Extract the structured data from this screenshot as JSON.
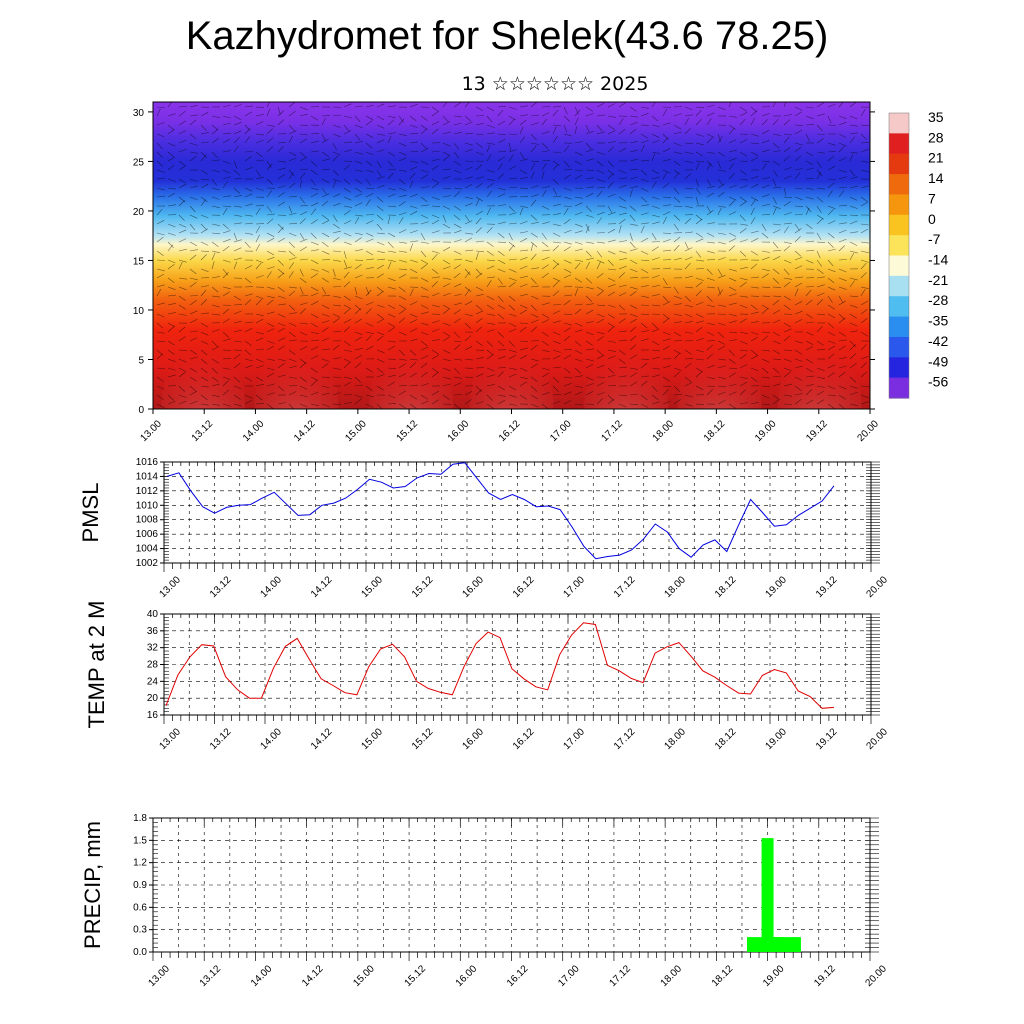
{
  "title": "Kazhydromet for Shelek(43.6 78.25)",
  "subtitle": "13 ☆☆☆☆☆☆ 2025",
  "chart_data": [
    {
      "type": "heatmap",
      "name": "cross-section",
      "x_ticks": [
        "13.00",
        "13.12",
        "14.00",
        "14.12",
        "15.00",
        "15.12",
        "16.00",
        "16.12",
        "17.00",
        "17.12",
        "18.00",
        "18.12",
        "19.00",
        "19.12",
        "20.00"
      ],
      "y_ticks": [
        0,
        5,
        10,
        15,
        20,
        25,
        30
      ],
      "ylim": [
        0,
        31
      ],
      "colorbar": {
        "labels": [
          "35",
          "28",
          "21",
          "14",
          "7",
          "0",
          "-7",
          "-14",
          "-21",
          "-28",
          "-35",
          "-42",
          "-49",
          "-56"
        ],
        "colors": [
          "#f6c9c9",
          "#e02020",
          "#e53a10",
          "#ee6a0c",
          "#f5960e",
          "#f9c320",
          "#fbe35a",
          "#fdfad8",
          "#a8e0f2",
          "#4fbdf0",
          "#2a8ef0",
          "#2a58ec",
          "#2525e0",
          "#7a2ee0"
        ]
      },
      "bands": [
        {
          "z": 0,
          "color": "#b11818"
        },
        {
          "z": 4,
          "color": "#dd1a16"
        },
        {
          "z": 8,
          "color": "#f0240e"
        },
        {
          "z": 11,
          "color": "#f26010"
        },
        {
          "z": 13,
          "color": "#f7a21a"
        },
        {
          "z": 15,
          "color": "#fbd84a"
        },
        {
          "z": 16.6,
          "color": "#fdf6c8"
        },
        {
          "z": 17.5,
          "color": "#b4e2f4"
        },
        {
          "z": 19.5,
          "color": "#4fb8f0"
        },
        {
          "z": 21.5,
          "color": "#2a6ee8"
        },
        {
          "z": 23,
          "color": "#2330d8"
        },
        {
          "z": 25,
          "color": "#2a2ad6"
        },
        {
          "z": 27,
          "color": "#4a2ee0"
        },
        {
          "z": 29,
          "color": "#7a30e6"
        },
        {
          "z": 31,
          "color": "#8a34ea"
        }
      ],
      "warm_spots": [
        0.07,
        0.2,
        0.36,
        0.5,
        0.66,
        0.79,
        0.93
      ]
    },
    {
      "type": "line",
      "name": "pmsl",
      "ylabel": "PMSL",
      "color": "#0000e0",
      "ylim": [
        1002,
        1016
      ],
      "y_ticks": [
        1002,
        1004,
        1006,
        1008,
        1010,
        1012,
        1014,
        1016
      ],
      "x_ticks": [
        "13.00",
        "13.12",
        "14.00",
        "14.12",
        "15.00",
        "15.12",
        "16.00",
        "16.12",
        "17.00",
        "17.12",
        "18.00",
        "18.12",
        "19.00",
        "19.12",
        "20.00"
      ],
      "values": [
        1014.0,
        1014.5,
        1012.0,
        1009.8,
        1008.9,
        1009.7,
        1010.0,
        1010.1,
        1011.0,
        1011.8,
        1010.2,
        1008.6,
        1008.7,
        1010.0,
        1010.3,
        1011.0,
        1012.2,
        1013.6,
        1013.2,
        1012.4,
        1012.6,
        1013.8,
        1014.4,
        1014.3,
        1015.7,
        1015.9,
        1013.8,
        1011.7,
        1010.8,
        1011.5,
        1010.8,
        1009.8,
        1009.9,
        1009.4,
        1007.0,
        1004.3,
        1002.6,
        1002.9,
        1003.1,
        1003.8,
        1005.3,
        1007.4,
        1006.3,
        1004.0,
        1002.8,
        1004.5,
        1005.2,
        1003.6,
        1007.3,
        1010.8,
        1009.0,
        1007.1,
        1007.3,
        1008.6,
        1009.6,
        1010.6,
        1012.7
      ]
    },
    {
      "type": "line",
      "name": "temp",
      "ylabel": "TEMP at 2 M",
      "color": "#e00000",
      "ylim": [
        16,
        40
      ],
      "y_ticks": [
        16,
        20,
        24,
        28,
        32,
        36,
        40
      ],
      "x_ticks": [
        "13.00",
        "13.12",
        "14.00",
        "14.12",
        "15.00",
        "15.12",
        "16.00",
        "16.12",
        "17.00",
        "17.12",
        "18.00",
        "18.12",
        "19.00",
        "19.12",
        "20.00"
      ],
      "values": [
        18.2,
        25.5,
        29.8,
        32.7,
        32.4,
        25.1,
        22.0,
        20.0,
        20.0,
        27.1,
        32.3,
        34.2,
        29.3,
        24.6,
        23.0,
        21.3,
        20.8,
        27.5,
        31.7,
        32.8,
        29.8,
        24.0,
        22.3,
        21.4,
        20.8,
        27.6,
        33.0,
        35.7,
        34.4,
        27.0,
        24.6,
        22.7,
        22.0,
        30.3,
        35.0,
        37.9,
        37.5,
        27.8,
        26.5,
        24.7,
        23.7,
        30.7,
        32.2,
        33.2,
        30.0,
        26.5,
        25.0,
        23.0,
        21.2,
        21.0,
        25.4,
        26.8,
        26.0,
        21.7,
        20.4,
        17.6,
        17.8
      ]
    },
    {
      "type": "bar",
      "name": "precip",
      "ylabel": "PRECIP, mm",
      "color": "#00ff00",
      "ylim": [
        0,
        1.8
      ],
      "y_ticks": [
        "0.0",
        "0.3",
        "0.6",
        "0.9",
        "1.2",
        "1.5",
        "1.8"
      ],
      "x_ticks": [
        "13.00",
        "13.12",
        "14.00",
        "14.12",
        "15.00",
        "15.12",
        "16.00",
        "16.12",
        "17.00",
        "17.12",
        "18.00",
        "18.12",
        "19.00",
        "19.12",
        "20.00"
      ],
      "bars": [
        {
          "x": 11.95,
          "value": 0.2
        },
        {
          "x": 12.0,
          "value": 1.53
        },
        {
          "x": 12.3,
          "value": 0.2
        }
      ]
    }
  ]
}
